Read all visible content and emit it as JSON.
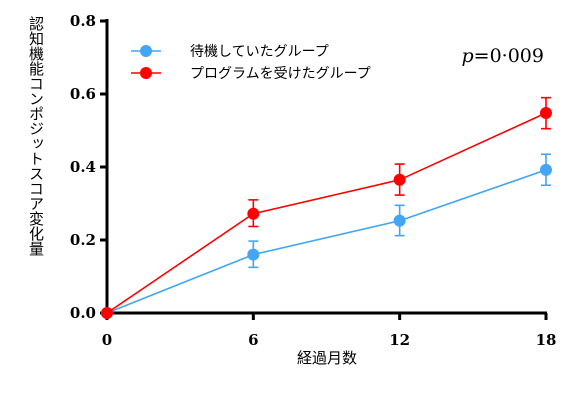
{
  "chart_data": {
    "type": "line",
    "x": [
      0,
      6,
      12,
      18
    ],
    "xticks": [
      "0",
      "6",
      "12",
      "18"
    ],
    "yticks": [
      "0.0",
      "0.2",
      "0.4",
      "0.6",
      "0.8"
    ],
    "xlabel": "経過月数",
    "ylabel": "認知機能コンポジットスコア変化量",
    "xlim": [
      0,
      18
    ],
    "ylim": [
      0,
      0.8
    ],
    "grid": false,
    "legend_position": "top-left",
    "annotation": {
      "italic": "p",
      "rest": "=0·009"
    },
    "series": [
      {
        "name": "待機していたグループ",
        "color": "#42a5f5",
        "values": [
          0,
          0.16,
          0.253,
          0.392
        ],
        "error_low": [
          0,
          0.125,
          0.212,
          0.35
        ],
        "error_high": [
          0,
          0.197,
          0.295,
          0.435
        ]
      },
      {
        "name": "プログラムを受けたグループ",
        "color": "#ff0000",
        "values": [
          0,
          0.272,
          0.365,
          0.548
        ],
        "error_low": [
          0,
          0.237,
          0.323,
          0.505
        ],
        "error_high": [
          0,
          0.31,
          0.408,
          0.59
        ]
      }
    ]
  }
}
